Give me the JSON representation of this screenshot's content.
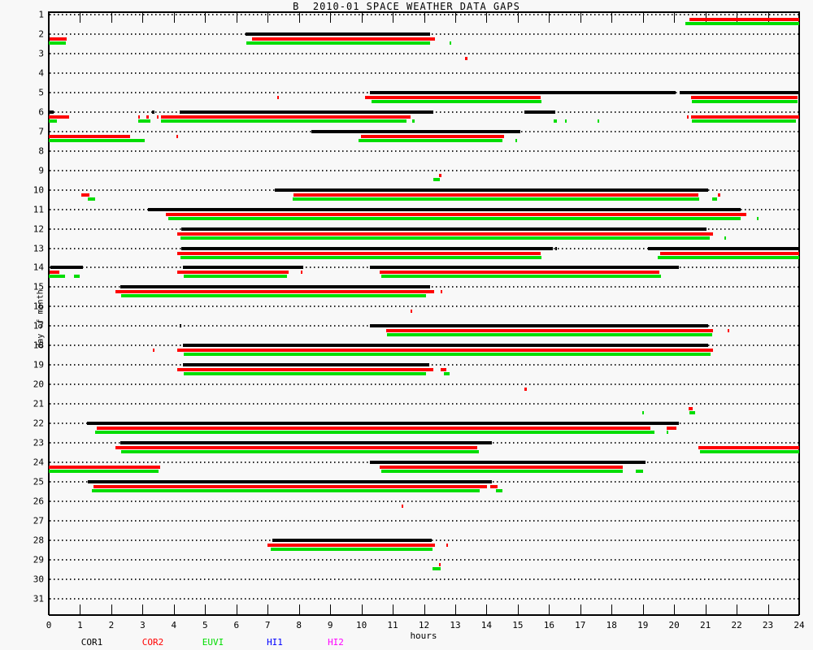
{
  "chart_data": {
    "type": "gantt-gaps",
    "title": "B  2010-01 SPACE WEATHER DATA GAPS",
    "xlabel": "hours",
    "ylabel": "day of month",
    "x_range": [
      0,
      24
    ],
    "x_ticks": [
      0,
      1,
      2,
      3,
      4,
      5,
      6,
      7,
      8,
      9,
      10,
      11,
      12,
      13,
      14,
      15,
      16,
      17,
      18,
      19,
      20,
      21,
      22,
      23,
      24
    ],
    "y_days": [
      1,
      2,
      3,
      4,
      5,
      6,
      7,
      8,
      9,
      10,
      11,
      12,
      13,
      14,
      15,
      16,
      17,
      18,
      19,
      20,
      21,
      22,
      23,
      24,
      25,
      26,
      27,
      28,
      29,
      30,
      31
    ],
    "grid": "dotted-horizontal-per-day",
    "legend_position": "bottom",
    "legend": [
      {
        "label": "COR1",
        "color": "#000000"
      },
      {
        "label": "COR2",
        "color": "#ff0000"
      },
      {
        "label": "EUVI",
        "color": "#00dd00"
      },
      {
        "label": "HI1",
        "color": "#0000ff"
      },
      {
        "label": "HI2",
        "color": "#ff00ff"
      }
    ],
    "series_styles": {
      "cor1": {
        "name": "COR1",
        "color": "#000000",
        "row_offset": -2,
        "thickness": 4
      },
      "cor2": {
        "name": "COR2",
        "color": "#ff0000",
        "row_offset": 4,
        "thickness": 4
      },
      "euvi": {
        "name": "EUVI",
        "color": "#00dd00",
        "row_offset": 9,
        "thickness": 4
      }
    },
    "gaps": [
      {
        "day": 1,
        "cor2": [
          [
            20.5,
            24
          ]
        ],
        "euvi": [
          [
            20.35,
            24
          ]
        ]
      },
      {
        "day": 2,
        "cor1": [
          [
            6.29,
            12.19
          ]
        ],
        "cor2": [
          [
            0.03,
            0.57
          ],
          [
            6.49,
            12.34
          ]
        ],
        "euvi": [
          [
            0,
            0.55
          ],
          [
            6.33,
            12.19
          ],
          [
            12.82,
            12.88
          ]
        ]
      },
      {
        "day": 3,
        "cor2": [
          [
            13.32,
            13.38
          ]
        ]
      },
      {
        "day": 5,
        "cor1": [
          [
            10.28,
            20.04
          ],
          [
            20.19,
            24
          ]
        ],
        "cor2": [
          [
            7.3,
            7.36
          ],
          [
            10.12,
            15.74
          ],
          [
            20.55,
            23.95
          ]
        ],
        "euvi": [
          [
            10.33,
            15.77
          ],
          [
            20.57,
            23.95
          ]
        ]
      },
      {
        "day": 6,
        "cor1": [
          [
            0,
            0.15
          ],
          [
            3.3,
            3.38
          ],
          [
            4.18,
            12.3
          ],
          [
            15.2,
            16.2
          ]
        ],
        "cor2": [
          [
            0,
            0.65
          ],
          [
            2.86,
            2.92
          ],
          [
            3.12,
            3.2
          ],
          [
            3.45,
            3.5
          ],
          [
            3.6,
            11.58
          ],
          [
            20.4,
            20.46
          ],
          [
            20.55,
            24
          ]
        ],
        "euvi": [
          [
            0,
            0.26
          ],
          [
            2.86,
            3.25
          ],
          [
            3.6,
            11.45
          ],
          [
            11.63,
            11.69
          ],
          [
            16.15,
            16.26
          ],
          [
            16.5,
            16.56
          ],
          [
            17.55,
            17.61
          ],
          [
            20.57,
            23.9
          ]
        ]
      },
      {
        "day": 7,
        "cor1": [
          [
            8.41,
            15.09
          ]
        ],
        "cor2": [
          [
            0,
            2.6
          ],
          [
            4.08,
            4.14
          ],
          [
            9.99,
            14.57
          ]
        ],
        "euvi": [
          [
            0,
            3.06
          ],
          [
            9.91,
            14.52
          ],
          [
            14.93,
            14.99
          ]
        ]
      },
      {
        "day": 9,
        "cor2": [
          [
            12.48,
            12.55
          ]
        ],
        "euvi": [
          [
            12.3,
            12.51
          ]
        ]
      },
      {
        "day": 10,
        "cor1": [
          [
            7.22,
            21.1
          ]
        ],
        "cor2": [
          [
            1.04,
            1.3
          ],
          [
            7.82,
            20.77
          ],
          [
            21.41,
            21.49
          ]
        ],
        "euvi": [
          [
            1.26,
            1.47
          ],
          [
            7.79,
            20.79
          ],
          [
            21.23,
            21.38
          ]
        ]
      },
      {
        "day": 11,
        "cor1": [
          [
            3.17,
            22.14
          ]
        ],
        "cor2": [
          [
            3.75,
            22.32
          ]
        ],
        "euvi": [
          [
            3.82,
            22.14
          ],
          [
            22.65,
            22.71
          ]
        ]
      },
      {
        "day": 12,
        "cor1": [
          [
            4.25,
            21.03
          ]
        ],
        "cor2": [
          [
            4.12,
            21.25
          ]
        ],
        "euvi": [
          [
            4.21,
            21.15
          ],
          [
            21.6,
            21.67
          ]
        ]
      },
      {
        "day": 13,
        "cor1": [
          [
            4.25,
            16.13
          ],
          [
            16.2,
            16.26
          ],
          [
            19.17,
            24
          ]
        ],
        "cor2": [
          [
            4.12,
            15.74
          ],
          [
            19.56,
            24
          ]
        ],
        "euvi": [
          [
            4.21,
            15.77
          ],
          [
            19.47,
            24
          ]
        ]
      },
      {
        "day": 14,
        "cor1": [
          [
            0.04,
            1.08
          ],
          [
            4.28,
            8.15
          ],
          [
            10.28,
            20.15
          ]
        ],
        "cor2": [
          [
            0.03,
            0.35
          ],
          [
            4.1,
            7.68
          ],
          [
            8.05,
            8.11
          ],
          [
            10.58,
            19.54
          ]
        ],
        "euvi": [
          [
            0,
            0.52
          ],
          [
            0.81,
            1.0
          ],
          [
            4.32,
            7.63
          ],
          [
            10.63,
            19.58
          ]
        ]
      },
      {
        "day": 15,
        "cor1": [
          [
            2.28,
            12.2
          ]
        ],
        "cor2": [
          [
            2.14,
            12.33
          ],
          [
            12.53,
            12.59
          ]
        ],
        "euvi": [
          [
            2.32,
            12.06
          ]
        ]
      },
      {
        "day": 16,
        "cor2": [
          [
            11.57,
            11.63
          ]
        ]
      },
      {
        "day": 17,
        "cor1": [
          [
            4.18,
            4.24
          ],
          [
            10.28,
            21.1
          ]
        ],
        "cor2": [
          [
            10.78,
            21.25
          ],
          [
            21.7,
            21.76
          ]
        ],
        "euvi": [
          [
            10.82,
            21.21
          ]
        ]
      },
      {
        "day": 18,
        "cor1": [
          [
            4.28,
            21.1
          ]
        ],
        "cor2": [
          [
            3.32,
            3.38
          ],
          [
            4.12,
            21.25
          ]
        ],
        "euvi": [
          [
            4.32,
            21.16
          ]
        ]
      },
      {
        "day": 19,
        "cor1": [
          [
            4.28,
            12.17
          ]
        ],
        "cor2": [
          [
            4.1,
            12.3
          ],
          [
            12.54,
            12.71
          ]
        ],
        "euvi": [
          [
            4.32,
            12.06
          ],
          [
            12.65,
            12.82
          ]
        ]
      },
      {
        "day": 20,
        "cor2": [
          [
            15.22,
            15.29
          ]
        ]
      },
      {
        "day": 21,
        "cor2": [
          [
            20.47,
            20.6
          ]
        ],
        "euvi": [
          [
            18.98,
            19.04
          ],
          [
            20.5,
            20.68
          ]
        ]
      },
      {
        "day": 22,
        "cor1": [
          [
            1.21,
            20.15
          ]
        ],
        "cor2": [
          [
            1.54,
            19.25
          ],
          [
            19.76,
            20.08
          ]
        ],
        "euvi": [
          [
            1.48,
            19.38
          ],
          [
            19.76,
            19.82
          ]
        ]
      },
      {
        "day": 23,
        "cor1": [
          [
            2.28,
            14.16
          ]
        ],
        "cor2": [
          [
            2.13,
            13.71
          ],
          [
            20.77,
            24
          ]
        ],
        "euvi": [
          [
            2.32,
            13.75
          ],
          [
            20.82,
            24
          ]
        ]
      },
      {
        "day": 24,
        "cor1": [
          [
            10.28,
            19.08
          ]
        ],
        "cor2": [
          [
            0,
            3.56
          ],
          [
            10.58,
            18.35
          ]
        ],
        "euvi": [
          [
            0,
            3.5
          ],
          [
            10.63,
            18.35
          ],
          [
            18.78,
            19.0
          ]
        ]
      },
      {
        "day": 25,
        "cor1": [
          [
            1.24,
            14.16
          ]
        ],
        "cor2": [
          [
            1.43,
            14.01
          ],
          [
            14.12,
            14.36
          ]
        ],
        "euvi": [
          [
            1.39,
            13.77
          ],
          [
            14.31,
            14.51
          ]
        ]
      },
      {
        "day": 26,
        "cor2": [
          [
            11.28,
            11.35
          ]
        ]
      },
      {
        "day": 28,
        "cor1": [
          [
            7.16,
            12.26
          ]
        ],
        "cor2": [
          [
            7.0,
            12.36
          ],
          [
            12.72,
            12.78
          ]
        ],
        "euvi": [
          [
            7.09,
            12.27
          ]
        ]
      },
      {
        "day": 29,
        "cor2": [
          [
            12.48,
            12.54
          ]
        ],
        "euvi": [
          [
            12.27,
            12.54
          ]
        ]
      }
    ]
  }
}
